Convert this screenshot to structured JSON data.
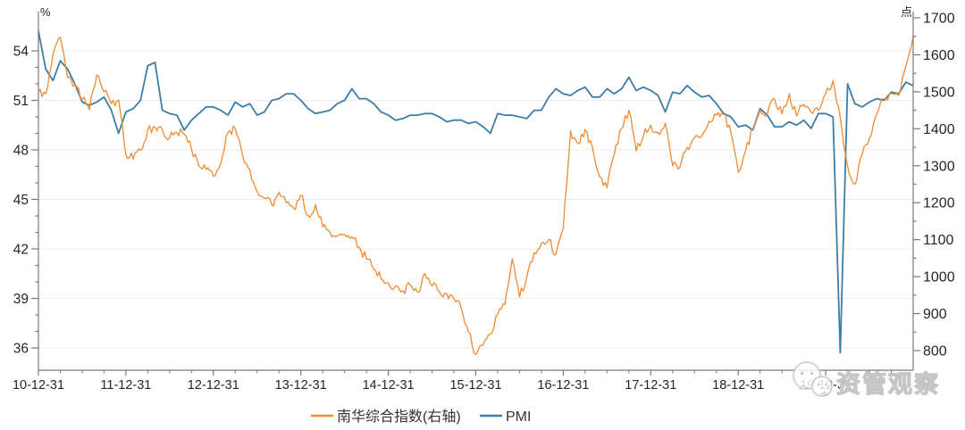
{
  "chart_data": {
    "type": "line",
    "title": "",
    "left_axis": {
      "unit_label": "%",
      "tick_min": 36,
      "tick_max": 54,
      "tick_step": 3,
      "minor_step": 1
    },
    "right_axis": {
      "unit_label": "点",
      "tick_min": 800,
      "tick_max": 1700,
      "tick_step": 100,
      "minor_step": 50
    },
    "x_axis": {
      "tick_labels": [
        "10-12-31",
        "11-12-31",
        "12-12-31",
        "13-12-31",
        "14-12-31",
        "15-12-31",
        "16-12-31",
        "17-12-31",
        "18-12-31",
        "19-12-31"
      ],
      "minor_ticks_per_year": 4,
      "months_total": 120
    },
    "grid": "horizontal-only",
    "legend_position": "bottom-center",
    "series": [
      {
        "name": "南华综合指数(右轴)",
        "axis": "right",
        "color": "#EF8B33",
        "start": "2010-12",
        "freq": "monthly",
        "noise_amplitude": 13,
        "noise_segments": 4,
        "values": [
          1500,
          1495,
          1600,
          1648,
          1538,
          1522,
          1480,
          1452,
          1545,
          1500,
          1468,
          1478,
          1330,
          1318,
          1342,
          1398,
          1405,
          1398,
          1375,
          1390,
          1385,
          1345,
          1300,
          1290,
          1272,
          1305,
          1390,
          1400,
          1330,
          1290,
          1230,
          1212,
          1195,
          1228,
          1200,
          1185,
          1220,
          1165,
          1195,
          1135,
          1120,
          1110,
          1115,
          1108,
          1080,
          1048,
          1020,
          995,
          982,
          975,
          962,
          978,
          958,
          1008,
          975,
          960,
          955,
          940,
          915,
          850,
          790,
          815,
          845,
          897,
          925,
          1048,
          945,
          1000,
          1065,
          1090,
          1100,
          1060,
          1130,
          1394,
          1360,
          1398,
          1350,
          1270,
          1240,
          1330,
          1400,
          1450,
          1340,
          1380,
          1410,
          1390,
          1415,
          1300,
          1295,
          1350,
          1375,
          1380,
          1420,
          1437,
          1438,
          1390,
          1282,
          1340,
          1400,
          1450,
          1440,
          1480,
          1440,
          1495,
          1435,
          1466,
          1445,
          1450,
          1495,
          1530,
          1430,
          1300,
          1250,
          1330,
          1375,
          1440,
          1480,
          1495,
          1490,
          1570,
          1650
        ]
      },
      {
        "name": "PMI",
        "axis": "left",
        "color": "#3D7EA6",
        "start": "2010-12",
        "freq": "monthly",
        "noise_amplitude": 0,
        "noise_segments": 1,
        "values": [
          55.2,
          52.9,
          52.2,
          53.4,
          52.9,
          52.0,
          50.9,
          50.7,
          50.9,
          51.2,
          50.4,
          49.0,
          50.3,
          50.5,
          51.0,
          53.1,
          53.3,
          50.4,
          50.2,
          50.1,
          49.2,
          49.8,
          50.2,
          50.6,
          50.6,
          50.4,
          50.1,
          50.9,
          50.6,
          50.8,
          50.1,
          50.3,
          51.0,
          51.1,
          51.4,
          51.4,
          51.0,
          50.5,
          50.2,
          50.3,
          50.4,
          50.8,
          51.0,
          51.7,
          51.1,
          51.1,
          50.8,
          50.3,
          50.1,
          49.8,
          49.9,
          50.1,
          50.1,
          50.2,
          50.2,
          50.0,
          49.7,
          49.8,
          49.8,
          49.6,
          49.7,
          49.4,
          49.0,
          50.2,
          50.1,
          50.1,
          50.0,
          49.9,
          50.4,
          50.4,
          51.2,
          51.7,
          51.4,
          51.3,
          51.6,
          51.8,
          51.2,
          51.2,
          51.7,
          51.4,
          51.7,
          52.4,
          51.6,
          51.8,
          51.6,
          51.3,
          50.3,
          51.5,
          51.4,
          51.9,
          51.5,
          51.2,
          51.3,
          50.8,
          50.2,
          50.0,
          49.4,
          49.5,
          49.2,
          50.5,
          50.1,
          49.4,
          49.4,
          49.7,
          49.5,
          49.8,
          49.3,
          50.2,
          50.2,
          50.0,
          35.7,
          52.0,
          50.8,
          50.6,
          50.9,
          51.1,
          51.0,
          51.5,
          51.4,
          52.1,
          51.9
        ]
      }
    ],
    "colors": {
      "gridline": "#ECECEC",
      "axis": "#7A7A7A",
      "tick_label": "#262626",
      "legend_text": "#333333"
    }
  },
  "watermark": {
    "text": "资管观察",
    "icon": "wechat-chat-bubbles-icon"
  }
}
